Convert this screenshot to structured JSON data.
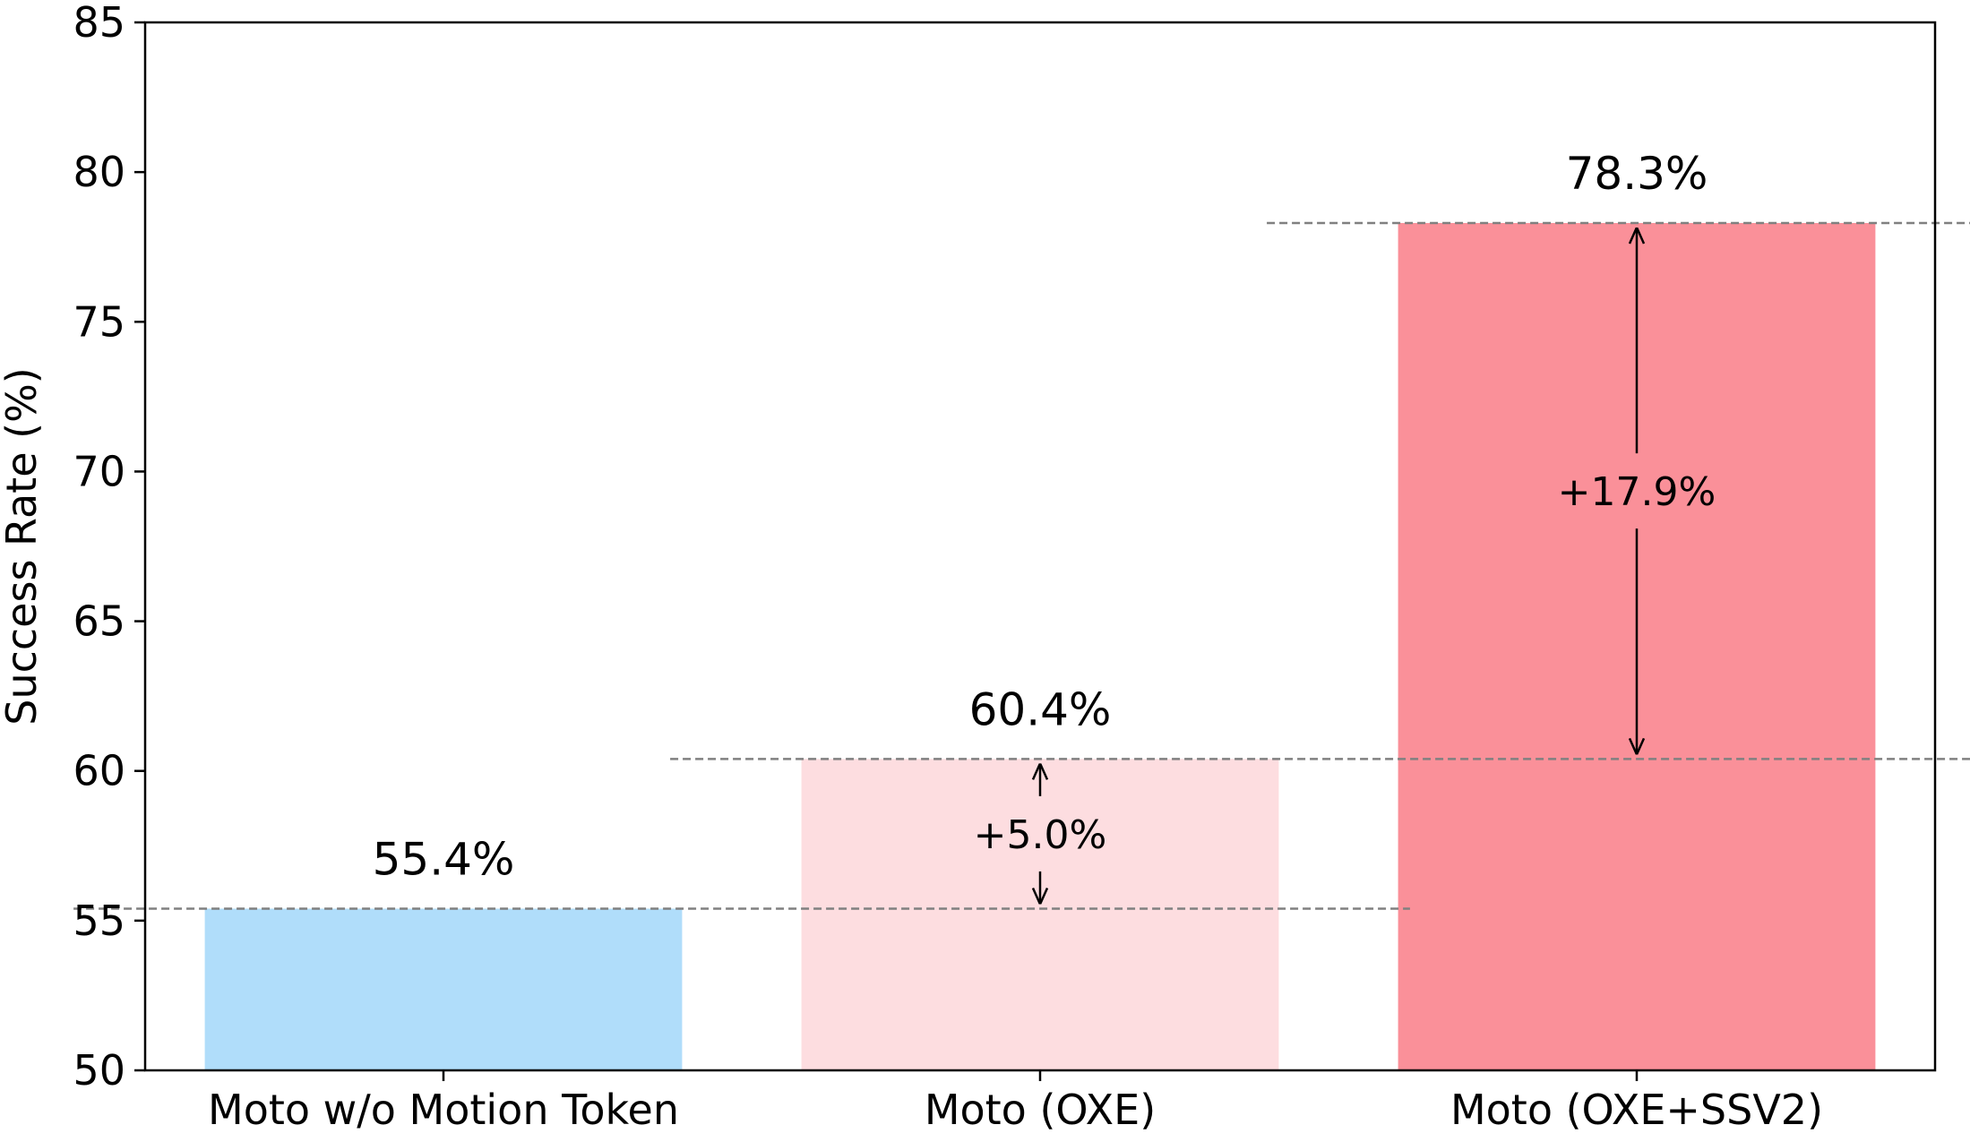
{
  "chart_data": {
    "type": "bar",
    "title": "",
    "xlabel": "",
    "ylabel": "Success Rate (%)",
    "ylim": [
      50,
      85
    ],
    "yticks": [
      50,
      55,
      60,
      65,
      70,
      75,
      80,
      85
    ],
    "grid": false,
    "categories": [
      "Moto w/o Motion Token",
      "Moto (OXE)",
      "Moto (OXE+SSV2)"
    ],
    "values": [
      55.4,
      60.4,
      78.3
    ],
    "value_labels": [
      "55.4%",
      "60.4%",
      "78.3%"
    ],
    "colors": [
      "#b0ddfa",
      "#fddde0",
      "#fa9099"
    ],
    "annotations": [
      {
        "from": 55.4,
        "to": 60.4,
        "bar_index": 1,
        "label": "+5.0%"
      },
      {
        "from": 60.4,
        "to": 78.3,
        "bar_index": 2,
        "label": "+17.9%"
      }
    ]
  }
}
